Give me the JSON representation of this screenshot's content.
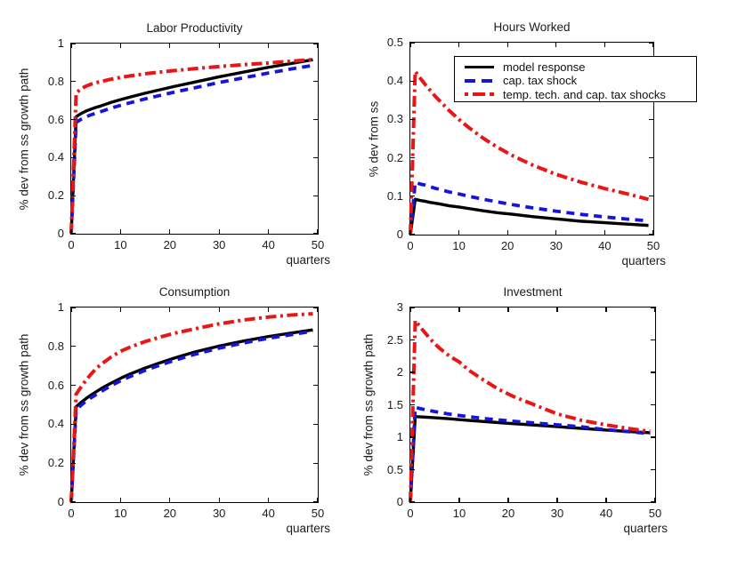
{
  "figure": {
    "background": "#ffffff",
    "axis_color": "#000000",
    "text_color": "#1c1c1c"
  },
  "legend": {
    "items": [
      {
        "label": "model response",
        "style": "solid",
        "color": "#000000"
      },
      {
        "label": "cap. tax shock",
        "style": "dashed",
        "color": "#1414dd"
      },
      {
        "label": "temp. tech. and cap. tax shocks",
        "style": "dashdot",
        "color": "#ea1616"
      }
    ]
  },
  "chart_data": [
    {
      "type": "line",
      "title": "Labor Productivity",
      "xlabel": "quarters",
      "ylabel": "% dev from ss growth path",
      "xlim": [
        0,
        50
      ],
      "ylim": [
        0,
        1
      ],
      "grid": false,
      "legend_position": "none",
      "xtick_labels": [
        "0",
        "10",
        "20",
        "30",
        "40",
        "50"
      ],
      "ytick_labels": [
        "0",
        "0.2",
        "0.4",
        "0.6",
        "0.8",
        "1"
      ],
      "x": [
        0,
        1,
        2,
        3,
        4,
        5,
        6,
        8,
        10,
        12,
        15,
        18,
        21,
        25,
        30,
        35,
        40,
        45,
        49
      ],
      "series": [
        {
          "name": "model response",
          "color": "#000000",
          "style": "solid",
          "values": [
            0,
            0.615,
            0.632,
            0.645,
            0.655,
            0.664,
            0.672,
            0.69,
            0.705,
            0.719,
            0.739,
            0.757,
            0.775,
            0.797,
            0.825,
            0.85,
            0.875,
            0.897,
            0.915
          ]
        },
        {
          "name": "cap. tax shock",
          "color": "#1414dd",
          "style": "dashed",
          "values": [
            0,
            0.585,
            0.602,
            0.615,
            0.625,
            0.634,
            0.642,
            0.66,
            0.675,
            0.689,
            0.709,
            0.727,
            0.745,
            0.767,
            0.795,
            0.82,
            0.845,
            0.868,
            0.885
          ]
        },
        {
          "name": "temp. tech. and cap. tax shocks",
          "color": "#ea1616",
          "style": "dashdot",
          "values": [
            0,
            0.74,
            0.762,
            0.776,
            0.786,
            0.794,
            0.8,
            0.812,
            0.822,
            0.83,
            0.841,
            0.85,
            0.858,
            0.868,
            0.879,
            0.889,
            0.898,
            0.908,
            0.916
          ]
        }
      ]
    },
    {
      "type": "line",
      "title": "Hours Worked",
      "xlabel": "quarters",
      "ylabel": "% dev from ss",
      "xlim": [
        0,
        50
      ],
      "ylim": [
        0,
        0.5
      ],
      "grid": false,
      "legend_position": "upper-right-overflow",
      "xtick_labels": [
        "0",
        "10",
        "20",
        "30",
        "40",
        "50"
      ],
      "ytick_labels": [
        "0",
        "0.1",
        "0.2",
        "0.3",
        "0.4",
        "0.5"
      ],
      "x": [
        0,
        1,
        2,
        3,
        4,
        5,
        6,
        8,
        10,
        12,
        15,
        18,
        21,
        25,
        30,
        35,
        40,
        45,
        49
      ],
      "series": [
        {
          "name": "model response",
          "color": "#000000",
          "style": "solid",
          "values": [
            0,
            0.092,
            0.089,
            0.087,
            0.084,
            0.082,
            0.08,
            0.075,
            0.072,
            0.068,
            0.062,
            0.057,
            0.053,
            0.047,
            0.041,
            0.035,
            0.031,
            0.027,
            0.024
          ]
        },
        {
          "name": "cap. tax shock",
          "color": "#1414dd",
          "style": "dashed",
          "values": [
            0,
            0.136,
            0.132,
            0.129,
            0.125,
            0.121,
            0.118,
            0.111,
            0.106,
            0.1,
            0.092,
            0.085,
            0.078,
            0.07,
            0.061,
            0.053,
            0.046,
            0.04,
            0.036
          ]
        },
        {
          "name": "temp. tech. and cap. tax shocks",
          "color": "#ea1616",
          "style": "dashdot",
          "values": [
            0,
            0.425,
            0.408,
            0.392,
            0.377,
            0.362,
            0.349,
            0.323,
            0.3,
            0.279,
            0.251,
            0.227,
            0.206,
            0.182,
            0.157,
            0.137,
            0.12,
            0.105,
            0.092
          ]
        }
      ]
    },
    {
      "type": "line",
      "title": "Consumption",
      "xlabel": "quarters",
      "ylabel": "% dev from ss growth path",
      "xlim": [
        0,
        50
      ],
      "ylim": [
        0,
        1
      ],
      "grid": false,
      "legend_position": "none",
      "xtick_labels": [
        "0",
        "10",
        "20",
        "30",
        "40",
        "50"
      ],
      "ytick_labels": [
        "0",
        "0.2",
        "0.4",
        "0.6",
        "0.8",
        "1"
      ],
      "x": [
        0,
        1,
        2,
        3,
        4,
        5,
        6,
        8,
        10,
        12,
        15,
        18,
        21,
        25,
        30,
        35,
        40,
        45,
        49
      ],
      "series": [
        {
          "name": "model response",
          "color": "#000000",
          "style": "solid",
          "values": [
            0,
            0.49,
            0.512,
            0.532,
            0.55,
            0.566,
            0.582,
            0.61,
            0.636,
            0.659,
            0.689,
            0.716,
            0.741,
            0.771,
            0.802,
            0.828,
            0.851,
            0.87,
            0.885
          ]
        },
        {
          "name": "cap. tax shock",
          "color": "#1414dd",
          "style": "dashed",
          "values": [
            0,
            0.475,
            0.498,
            0.518,
            0.536,
            0.552,
            0.568,
            0.597,
            0.623,
            0.646,
            0.677,
            0.704,
            0.729,
            0.759,
            0.791,
            0.818,
            0.842,
            0.862,
            0.878
          ]
        },
        {
          "name": "temp. tech. and cap. tax shocks",
          "color": "#ea1616",
          "style": "dashdot",
          "values": [
            0,
            0.555,
            0.592,
            0.627,
            0.657,
            0.685,
            0.707,
            0.744,
            0.775,
            0.797,
            0.825,
            0.848,
            0.868,
            0.89,
            0.916,
            0.936,
            0.951,
            0.962,
            0.968
          ]
        }
      ]
    },
    {
      "type": "line",
      "title": "Investment",
      "xlabel": "quarters",
      "ylabel": "% dev from ss growth path",
      "xlim": [
        0,
        50
      ],
      "ylim": [
        0,
        3
      ],
      "grid": false,
      "legend_position": "none",
      "xtick_labels": [
        "0",
        "10",
        "20",
        "30",
        "40",
        "50"
      ],
      "ytick_labels": [
        "0",
        "0.5",
        "1",
        "1.5",
        "2",
        "2.5",
        "3"
      ],
      "x": [
        0,
        1,
        2,
        3,
        4,
        5,
        6,
        8,
        10,
        12,
        15,
        18,
        21,
        25,
        30,
        35,
        40,
        45,
        49
      ],
      "series": [
        {
          "name": "model response",
          "color": "#000000",
          "style": "solid",
          "values": [
            0,
            1.32,
            1.315,
            1.31,
            1.305,
            1.3,
            1.296,
            1.285,
            1.272,
            1.26,
            1.242,
            1.226,
            1.21,
            1.19,
            1.163,
            1.136,
            1.11,
            1.087,
            1.07
          ]
        },
        {
          "name": "cap. tax shock",
          "color": "#1414dd",
          "style": "dashed",
          "values": [
            0,
            1.46,
            1.442,
            1.425,
            1.41,
            1.395,
            1.382,
            1.357,
            1.335,
            1.316,
            1.29,
            1.267,
            1.247,
            1.222,
            1.192,
            1.16,
            1.118,
            1.083,
            1.058
          ]
        },
        {
          "name": "temp. tech. and cap. tax shocks",
          "color": "#ea1616",
          "style": "dashdot",
          "values": [
            0,
            2.8,
            2.7,
            2.61,
            2.52,
            2.44,
            2.37,
            2.25,
            2.16,
            2.03,
            1.88,
            1.74,
            1.63,
            1.51,
            1.36,
            1.26,
            1.19,
            1.13,
            1.09
          ]
        }
      ]
    }
  ]
}
